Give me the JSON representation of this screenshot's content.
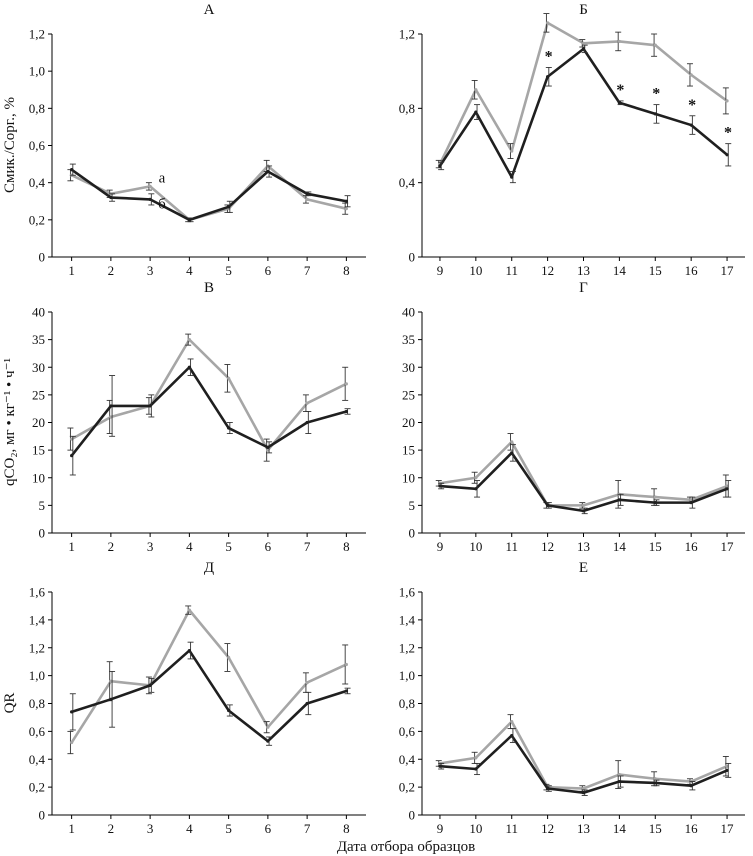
{
  "figure": {
    "xlabel": "Дата отбора образцов"
  },
  "colors": {
    "a": "#a6a6a6",
    "b": "#1f1f1f",
    "axis": "#000000",
    "error": "#333333"
  },
  "chart_data": [
    {
      "id": "A",
      "type": "line",
      "title": "А",
      "ylabel": "Смик./Сорг., %",
      "x": [
        1,
        2,
        3,
        4,
        5,
        6,
        7,
        8
      ],
      "ylim": [
        0,
        1.2
      ],
      "yticks": [
        "0",
        "0,2",
        "0,4",
        "0,6",
        "0,8",
        "1,0",
        "1,2"
      ],
      "ytick_values": [
        0,
        0.2,
        0.4,
        0.6,
        0.8,
        1.0,
        1.2
      ],
      "series": [
        {
          "name": "а",
          "values": [
            0.44,
            0.34,
            0.38,
            0.2,
            0.26,
            0.49,
            0.31,
            0.26
          ],
          "errors": [
            0.03,
            0.02,
            0.02,
            0.01,
            0.02,
            0.03,
            0.02,
            0.03
          ]
        },
        {
          "name": "б",
          "values": [
            0.47,
            0.32,
            0.31,
            0.2,
            0.27,
            0.46,
            0.34,
            0.3
          ],
          "errors": [
            0.03,
            0.02,
            0.03,
            0.01,
            0.03,
            0.03,
            0.01,
            0.03
          ]
        }
      ],
      "annotations": [
        {
          "text": "а",
          "x": 3.3,
          "y": 0.4
        },
        {
          "text": "б",
          "x": 3.3,
          "y": 0.26
        }
      ]
    },
    {
      "id": "B1",
      "type": "line",
      "title": "Б",
      "ylabel": "",
      "x": [
        9,
        10,
        11,
        12,
        13,
        14,
        15,
        16,
        17
      ],
      "ylim": [
        0,
        1.2
      ],
      "yticks": [
        "0",
        "0,4",
        "0,8",
        "1,2"
      ],
      "ytick_values": [
        0,
        0.4,
        0.8,
        1.2
      ],
      "series": [
        {
          "name": "а",
          "values": [
            0.5,
            0.9,
            0.57,
            1.26,
            1.15,
            1.16,
            1.14,
            0.98,
            0.84
          ],
          "errors": [
            0.02,
            0.05,
            0.04,
            0.05,
            0.02,
            0.05,
            0.06,
            0.06,
            0.07
          ]
        },
        {
          "name": "б",
          "values": [
            0.49,
            0.78,
            0.43,
            0.97,
            1.12,
            0.83,
            0.77,
            0.71,
            0.55
          ],
          "errors": [
            0.02,
            0.04,
            0.03,
            0.05,
            0.02,
            0.01,
            0.05,
            0.05,
            0.06
          ]
        }
      ],
      "significance": [
        {
          "text": "*",
          "x": 12
        },
        {
          "text": "*",
          "x": 14
        },
        {
          "text": "*",
          "x": 15
        },
        {
          "text": "*",
          "x": 16
        },
        {
          "text": "*",
          "x": 17
        }
      ]
    },
    {
      "id": "V",
      "type": "line",
      "title": "В",
      "ylabel": "qCO₂, мг • кг⁻¹ • ч⁻¹",
      "x": [
        1,
        2,
        3,
        4,
        5,
        6,
        7,
        8
      ],
      "ylim": [
        0,
        40
      ],
      "yticks": [
        "0",
        "5",
        "10",
        "15",
        "20",
        "25",
        "30",
        "35",
        "40"
      ],
      "ytick_values": [
        0,
        5,
        10,
        15,
        20,
        25,
        30,
        35,
        40
      ],
      "series": [
        {
          "name": "а",
          "values": [
            17,
            21,
            23,
            35,
            28,
            15,
            23.5,
            27
          ],
          "errors": [
            2,
            3,
            1.5,
            1,
            2.5,
            2,
            1.5,
            3
          ]
        },
        {
          "name": "б",
          "values": [
            14,
            23,
            23,
            30,
            19,
            15.5,
            20,
            22
          ],
          "errors": [
            3.5,
            5.5,
            2,
            1.5,
            1,
            1,
            2,
            0.5
          ]
        }
      ]
    },
    {
      "id": "G",
      "type": "line",
      "title": "Г",
      "ylabel": "",
      "x": [
        9,
        10,
        11,
        12,
        13,
        14,
        15,
        16,
        17
      ],
      "ylim": [
        0,
        40
      ],
      "yticks": [
        "0",
        "5",
        "10",
        "15",
        "20",
        "25",
        "30",
        "35",
        "40"
      ],
      "ytick_values": [
        0,
        5,
        10,
        15,
        20,
        25,
        30,
        35,
        40
      ],
      "series": [
        {
          "name": "а",
          "values": [
            9,
            10,
            16.5,
            5,
            5,
            7,
            6.5,
            6,
            8.5
          ],
          "errors": [
            0.5,
            1,
            1.5,
            0.5,
            0.5,
            2.5,
            1.5,
            0.5,
            2
          ]
        },
        {
          "name": "б",
          "values": [
            8.5,
            8,
            14.5,
            5,
            4,
            6,
            5.5,
            5.5,
            8
          ],
          "errors": [
            0.5,
            1.5,
            1.5,
            0.5,
            0.5,
            1,
            0.5,
            1,
            1.5
          ]
        }
      ]
    },
    {
      "id": "D",
      "type": "line",
      "title": "Д",
      "ylabel": "QR",
      "x": [
        1,
        2,
        3,
        4,
        5,
        6,
        7,
        8
      ],
      "ylim": [
        0,
        1.6
      ],
      "yticks": [
        "0",
        "0,2",
        "0,4",
        "0,6",
        "0,8",
        "1,0",
        "1,2",
        "1,4",
        "1,6"
      ],
      "ytick_values": [
        0,
        0.2,
        0.4,
        0.6,
        0.8,
        1.0,
        1.2,
        1.4,
        1.6
      ],
      "series": [
        {
          "name": "а",
          "values": [
            0.52,
            0.96,
            0.93,
            1.47,
            1.13,
            0.63,
            0.95,
            1.08
          ],
          "errors": [
            0.08,
            0.14,
            0.06,
            0.03,
            0.1,
            0.04,
            0.07,
            0.14
          ]
        },
        {
          "name": "б",
          "values": [
            0.74,
            0.83,
            0.93,
            1.18,
            0.75,
            0.53,
            0.8,
            0.89
          ],
          "errors": [
            0.13,
            0.2,
            0.05,
            0.06,
            0.04,
            0.03,
            0.08,
            0.02
          ]
        }
      ]
    },
    {
      "id": "E",
      "type": "line",
      "title": "Е",
      "ylabel": "",
      "x": [
        9,
        10,
        11,
        12,
        13,
        14,
        15,
        16,
        17
      ],
      "ylim": [
        0,
        1.6
      ],
      "yticks": [
        "0",
        "0,2",
        "0,4",
        "0,6",
        "0,8",
        "1,0",
        "1,2",
        "1,4",
        "1,6"
      ],
      "ytick_values": [
        0,
        0.2,
        0.4,
        0.6,
        0.8,
        1.0,
        1.2,
        1.4,
        1.6
      ],
      "series": [
        {
          "name": "а",
          "values": [
            0.37,
            0.41,
            0.67,
            0.2,
            0.19,
            0.29,
            0.26,
            0.24,
            0.35
          ],
          "errors": [
            0.02,
            0.04,
            0.05,
            0.02,
            0.02,
            0.1,
            0.05,
            0.02,
            0.07
          ]
        },
        {
          "name": "б",
          "values": [
            0.35,
            0.33,
            0.57,
            0.19,
            0.16,
            0.24,
            0.23,
            0.21,
            0.32
          ],
          "errors": [
            0.02,
            0.04,
            0.05,
            0.02,
            0.02,
            0.04,
            0.02,
            0.03,
            0.05
          ]
        }
      ]
    }
  ]
}
